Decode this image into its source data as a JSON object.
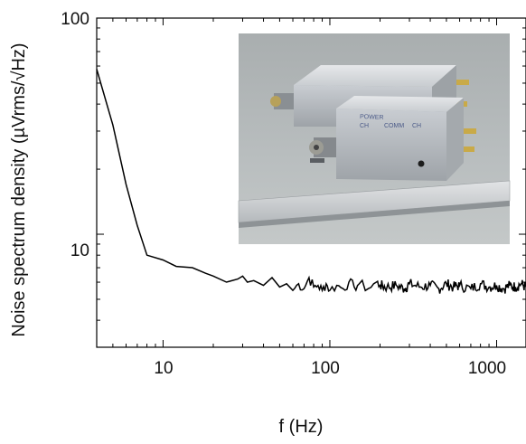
{
  "chart_data": {
    "type": "line",
    "title": "",
    "xlabel": "f (Hz)",
    "ylabel": "Noise spectrum density (µVrms/√Hz)",
    "xscale": "log",
    "yscale": "log",
    "xlim": [
      4,
      1500
    ],
    "ylim": [
      3,
      100
    ],
    "xticks": [
      10,
      100,
      1000
    ],
    "xtick_labels": [
      "10",
      "100",
      "1000"
    ],
    "yticks": [
      10,
      100
    ],
    "ytick_labels": [
      "10",
      "100"
    ],
    "grid": false,
    "legend": "none",
    "inset": "photograph of two rectangular aluminium amplifier boxes with BNC connectors placed on a metal ruler",
    "inset_labels": [
      "POWER",
      "CH",
      "COMM",
      "CH"
    ],
    "series": [
      {
        "color": "#000000",
        "x": [
          4,
          5,
          6,
          7,
          8,
          10,
          12,
          15,
          18,
          20,
          24,
          28,
          30,
          32,
          35,
          40,
          45,
          50,
          55,
          60,
          65,
          70,
          75,
          80,
          85,
          90,
          95,
          100,
          110,
          120,
          130,
          140,
          150,
          170,
          190,
          200,
          220,
          250,
          280,
          300,
          350,
          400,
          450,
          500,
          550,
          600,
          700,
          800,
          900,
          1000,
          1100,
          1200,
          1300,
          1400,
          1500
        ],
        "y": [
          58,
          32,
          17,
          11,
          8.0,
          7.6,
          7.1,
          7.0,
          6.6,
          6.4,
          6.0,
          6.2,
          6.4,
          6.0,
          6.1,
          5.8,
          6.3,
          5.7,
          5.9,
          5.5,
          5.9,
          5.6,
          6.3,
          5.7,
          5.8,
          5.5,
          5.9,
          5.5,
          5.8,
          5.6,
          6.0,
          5.7,
          5.9,
          5.6,
          6.0,
          5.8,
          5.7,
          5.8,
          5.6,
          5.9,
          5.7,
          5.8,
          5.6,
          5.9,
          5.7,
          5.8,
          5.6,
          5.9,
          5.7,
          5.8,
          5.6,
          5.8,
          5.7,
          5.9,
          5.7
        ]
      }
    ]
  },
  "colors": {
    "axis": "#000000",
    "line": "#000000",
    "background": "#ffffff"
  }
}
